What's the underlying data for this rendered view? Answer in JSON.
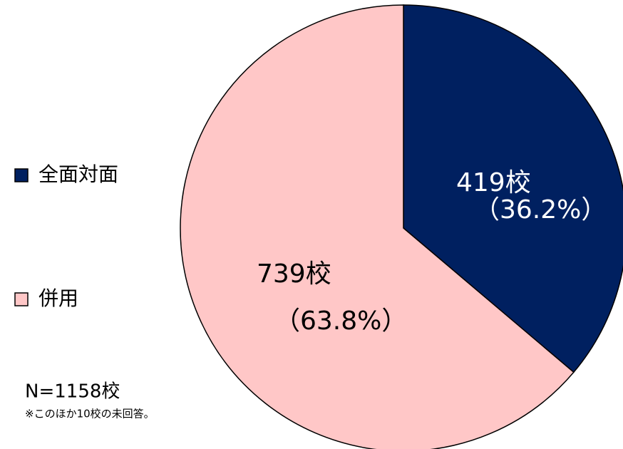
{
  "chart_data": {
    "type": "pie",
    "categories": [
      "全面対面",
      "併用"
    ],
    "values": [
      419,
      739
    ],
    "value_labels": [
      "419校",
      "739校"
    ],
    "percent_labels": [
      "（36.2%）",
      "（63.8%）"
    ],
    "colors": [
      "#002060",
      "#ffc7c7"
    ],
    "label_colors": [
      "#ffffff",
      "#000000"
    ],
    "legend": "left",
    "annotations": [
      "N=1158校",
      "※このほか10校の未回答。"
    ]
  }
}
